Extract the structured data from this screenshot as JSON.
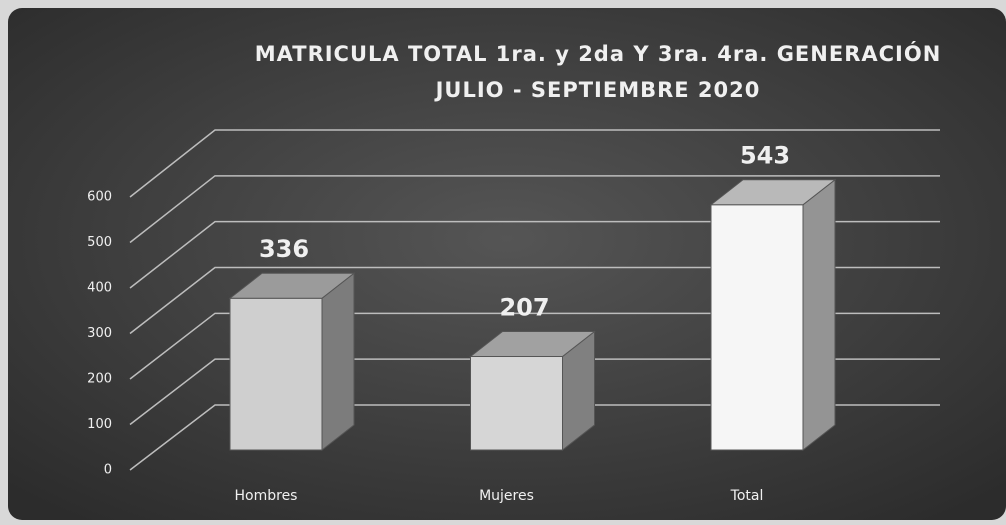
{
  "chart_data": {
    "type": "bar3d",
    "title": "MATRICULA TOTAL 1ra. y 2da Y 3ra. 4ra. GENERACIÓN",
    "subtitle": "JULIO - SEPTIEMBRE 2020",
    "categories": [
      "Hombres",
      "Mujeres",
      "Total"
    ],
    "values": [
      336,
      207,
      543
    ],
    "colors": [
      "#cfcfcf",
      "#d6d6d6",
      "#f6f6f6"
    ],
    "ylim": [
      0,
      600
    ],
    "yticks": [
      0,
      100,
      200,
      300,
      400,
      500,
      600
    ],
    "grid": true
  }
}
